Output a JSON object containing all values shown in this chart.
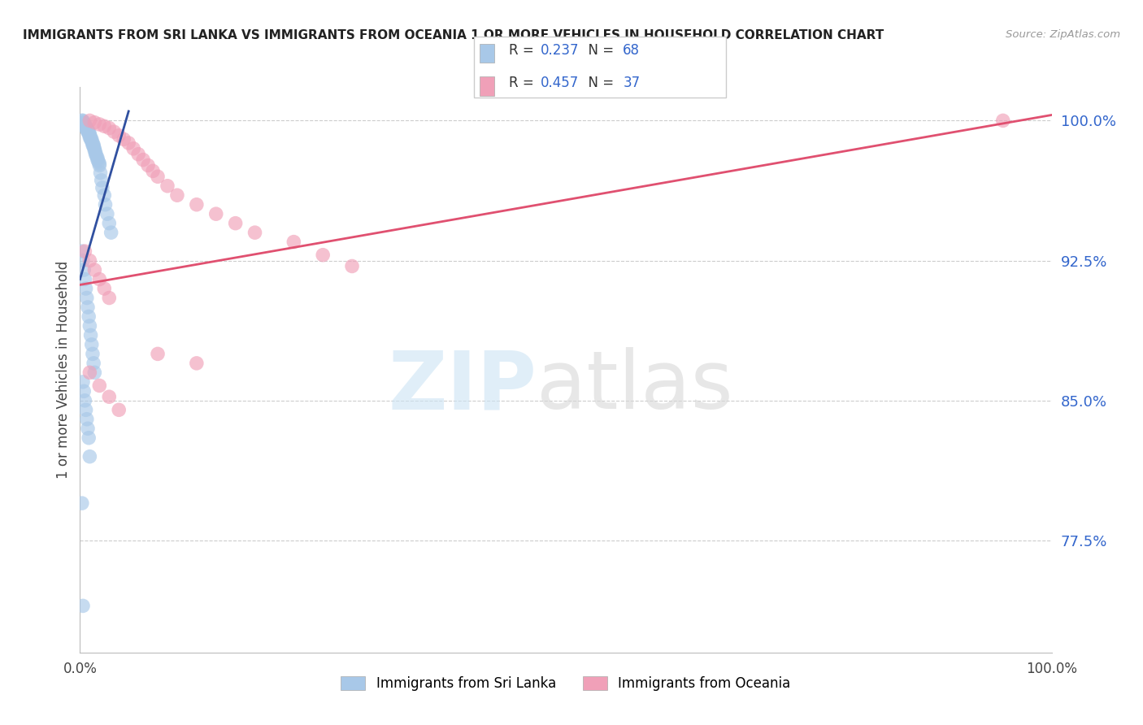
{
  "title": "IMMIGRANTS FROM SRI LANKA VS IMMIGRANTS FROM OCEANIA 1 OR MORE VEHICLES IN HOUSEHOLD CORRELATION CHART",
  "source": "Source: ZipAtlas.com",
  "ylabel_label": "1 or more Vehicles in Household",
  "ytick_values": [
    0.775,
    0.85,
    0.925,
    1.0
  ],
  "ytick_labels": [
    "77.5%",
    "85.0%",
    "92.5%",
    "100.0%"
  ],
  "xmin": 0.0,
  "xmax": 1.0,
  "ymin": 0.715,
  "ymax": 1.018,
  "legend1_label": "Immigrants from Sri Lanka",
  "legend2_label": "Immigrants from Oceania",
  "r1": 0.237,
  "n1": 68,
  "r2": 0.457,
  "n2": 37,
  "color_blue": "#a8c8e8",
  "color_pink": "#f0a0b8",
  "line_blue": "#3050a0",
  "line_pink": "#e05070",
  "sl_line_x0": 0.0,
  "sl_line_y0": 0.915,
  "sl_line_x1": 0.05,
  "sl_line_y1": 1.005,
  "oc_line_x0": 0.0,
  "oc_line_y0": 0.912,
  "oc_line_x1": 1.0,
  "oc_line_y1": 1.003,
  "sl_x": [
    0.002,
    0.003,
    0.003,
    0.004,
    0.004,
    0.005,
    0.005,
    0.006,
    0.006,
    0.007,
    0.007,
    0.008,
    0.008,
    0.009,
    0.009,
    0.01,
    0.01,
    0.01,
    0.011,
    0.011,
    0.012,
    0.012,
    0.013,
    0.013,
    0.014,
    0.014,
    0.015,
    0.015,
    0.016,
    0.016,
    0.017,
    0.018,
    0.018,
    0.019,
    0.02,
    0.02,
    0.021,
    0.022,
    0.023,
    0.025,
    0.026,
    0.028,
    0.03,
    0.032,
    0.002,
    0.003,
    0.004,
    0.005,
    0.006,
    0.007,
    0.008,
    0.009,
    0.01,
    0.011,
    0.012,
    0.013,
    0.014,
    0.015,
    0.003,
    0.004,
    0.005,
    0.006,
    0.007,
    0.008,
    0.009,
    0.01,
    0.002,
    0.003
  ],
  "sl_y": [
    1.0,
    1.0,
    0.999,
    0.999,
    0.998,
    0.998,
    0.997,
    0.997,
    0.996,
    0.996,
    0.995,
    0.995,
    0.994,
    0.994,
    0.993,
    0.993,
    0.992,
    0.991,
    0.991,
    0.99,
    0.99,
    0.989,
    0.988,
    0.987,
    0.987,
    0.986,
    0.985,
    0.984,
    0.983,
    0.982,
    0.981,
    0.98,
    0.979,
    0.978,
    0.977,
    0.976,
    0.972,
    0.968,
    0.964,
    0.96,
    0.955,
    0.95,
    0.945,
    0.94,
    0.93,
    0.925,
    0.92,
    0.915,
    0.91,
    0.905,
    0.9,
    0.895,
    0.89,
    0.885,
    0.88,
    0.875,
    0.87,
    0.865,
    0.86,
    0.855,
    0.85,
    0.845,
    0.84,
    0.835,
    0.83,
    0.82,
    0.795,
    0.74
  ],
  "oc_x": [
    0.01,
    0.015,
    0.02,
    0.025,
    0.03,
    0.035,
    0.04,
    0.045,
    0.05,
    0.055,
    0.06,
    0.065,
    0.07,
    0.075,
    0.08,
    0.09,
    0.1,
    0.12,
    0.14,
    0.16,
    0.18,
    0.22,
    0.25,
    0.28,
    0.005,
    0.01,
    0.015,
    0.02,
    0.025,
    0.03,
    0.08,
    0.12,
    0.01,
    0.02,
    0.03,
    0.04,
    0.95
  ],
  "oc_y": [
    1.0,
    0.999,
    0.998,
    0.997,
    0.996,
    0.994,
    0.992,
    0.99,
    0.988,
    0.985,
    0.982,
    0.979,
    0.976,
    0.973,
    0.97,
    0.965,
    0.96,
    0.955,
    0.95,
    0.945,
    0.94,
    0.935,
    0.928,
    0.922,
    0.93,
    0.925,
    0.92,
    0.915,
    0.91,
    0.905,
    0.875,
    0.87,
    0.865,
    0.858,
    0.852,
    0.845,
    1.0
  ]
}
